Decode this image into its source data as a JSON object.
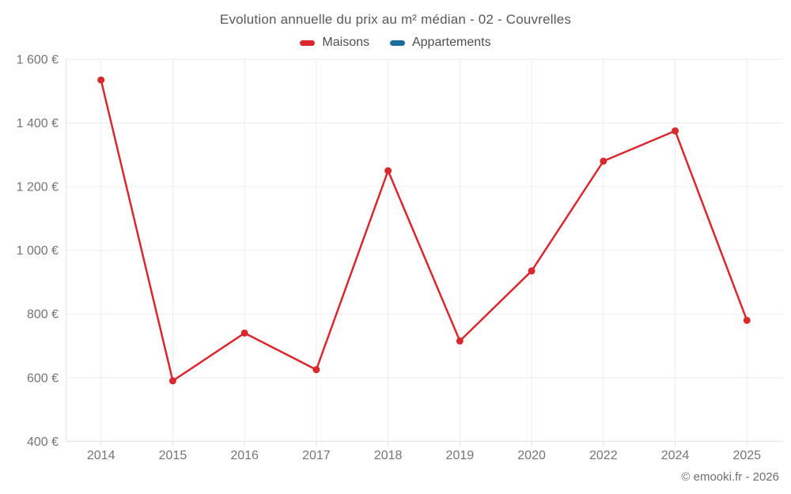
{
  "header": {
    "title": "Evolution annuelle du prix au m² médian - 02 - Couvrelles"
  },
  "footer": {
    "credit": "© emooki.fr - 2026"
  },
  "chart_data": {
    "type": "line",
    "title": "Evolution annuelle du prix au m² médian - 02 - Couvrelles",
    "categories": [
      "2014",
      "2015",
      "2016",
      "2017",
      "2018",
      "2019",
      "2020",
      "2022",
      "2024",
      "2025"
    ],
    "series": [
      {
        "name": "Maisons",
        "color": "#d9282e",
        "values": [
          1535,
          590,
          740,
          625,
          1250,
          715,
          935,
          1280,
          1375,
          780
        ]
      },
      {
        "name": "Appartements",
        "color": "#1a6d9a",
        "values": []
      }
    ],
    "xlabel": "",
    "ylabel": "",
    "ylim": [
      400,
      1600
    ],
    "ytick_step": 200,
    "y_tick_labels": [
      "400 €",
      "600 €",
      "800 €",
      "1 000 €",
      "1 200 €",
      "1 400 €",
      "1 600 €"
    ],
    "grid": true,
    "legend_position": "top",
    "colors": {
      "grid": "#ededed",
      "axis": "#e2e2e2",
      "tick_text": "#757575",
      "title_text": "#595959"
    }
  }
}
